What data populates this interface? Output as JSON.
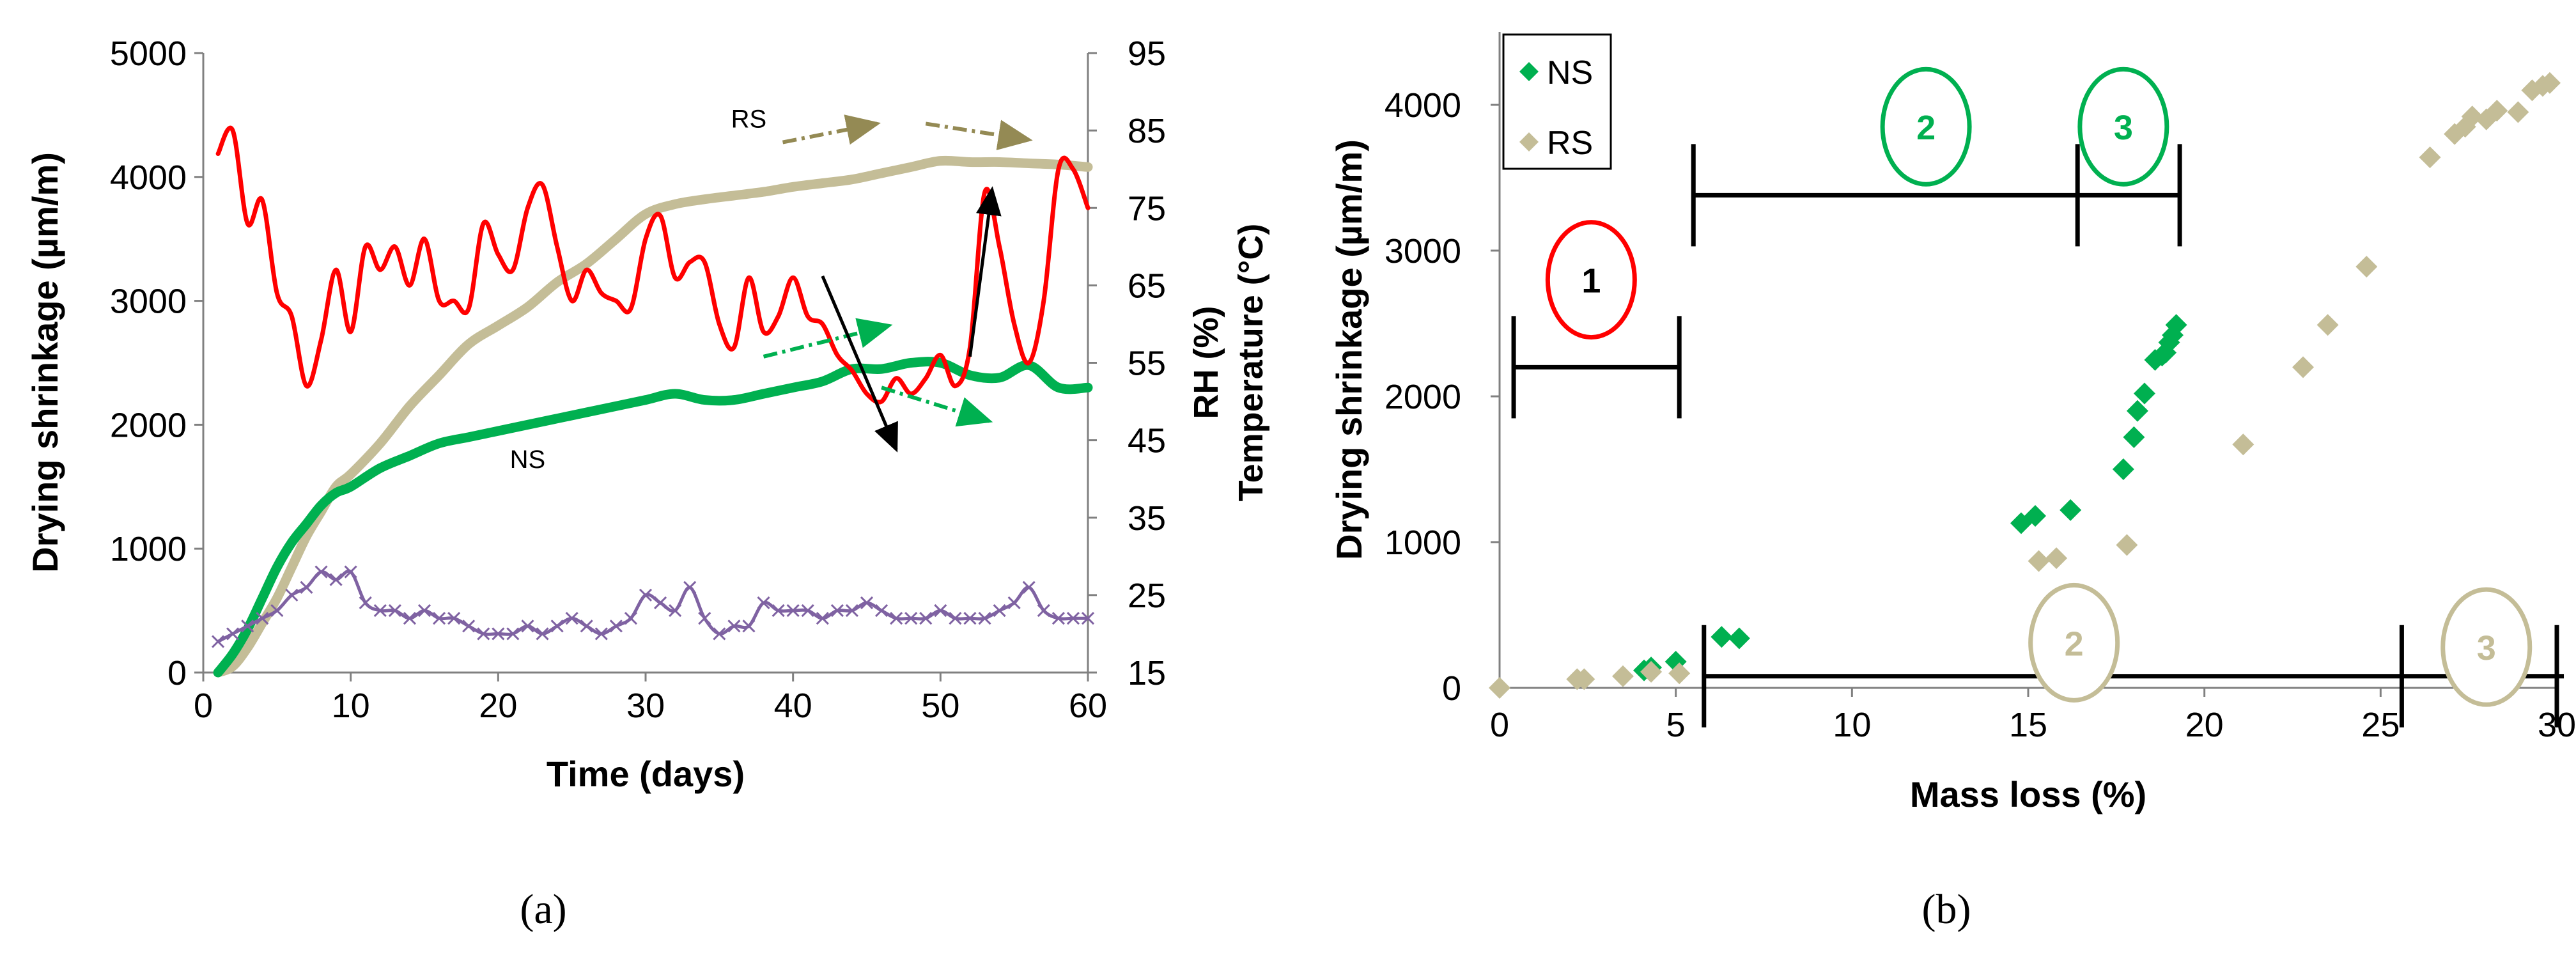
{
  "colors": {
    "ns": "#00B050",
    "rs": "#C4BD97",
    "rs_arrow": "#948A54",
    "red": "#FF0000",
    "purple": "#7F62A2",
    "black": "#000000"
  },
  "captions": {
    "a": "(a)",
    "b": "(b)"
  },
  "chart_data": [
    {
      "type": "line",
      "panel": "a",
      "xlabel": "Time (days)",
      "ylabel": "Drying shrinkage (µm/m)",
      "y2label_rh": "RH (%)",
      "y2label_temp": "Temperature (°C)",
      "xlim": [
        0,
        60
      ],
      "ylim": [
        0,
        5000
      ],
      "y2lim": [
        15,
        95
      ],
      "xticks": [
        0,
        10,
        20,
        30,
        40,
        50,
        60
      ],
      "yticks": [
        0,
        1000,
        2000,
        3000,
        4000,
        5000
      ],
      "y2ticks": [
        15,
        25,
        35,
        45,
        55,
        65,
        75,
        85,
        95
      ],
      "annotations": [
        {
          "text": "RS",
          "x": 37,
          "y": 4400
        },
        {
          "text": "NS",
          "x": 22,
          "y": 1650
        }
      ],
      "series": [
        {
          "name": "RS",
          "axis": "left",
          "color": "#C4BD97",
          "x": [
            1,
            2,
            3,
            4,
            5,
            6,
            7,
            8,
            9,
            10,
            12,
            14,
            16,
            18,
            20,
            22,
            24,
            26,
            28,
            30,
            32,
            34,
            36,
            38,
            40,
            42,
            44,
            46,
            48,
            50,
            52,
            54,
            56,
            58,
            60
          ],
          "y": [
            0,
            50,
            200,
            400,
            600,
            850,
            1100,
            1300,
            1500,
            1600,
            1850,
            2150,
            2400,
            2650,
            2800,
            2950,
            3150,
            3300,
            3500,
            3700,
            3780,
            3820,
            3850,
            3880,
            3920,
            3950,
            3980,
            4030,
            4080,
            4130,
            4120,
            4120,
            4110,
            4100,
            4080
          ]
        },
        {
          "name": "NS",
          "axis": "left",
          "color": "#00B050",
          "x": [
            1,
            2,
            3,
            4,
            5,
            6,
            7,
            8,
            9,
            10,
            12,
            14,
            16,
            18,
            20,
            22,
            24,
            26,
            28,
            30,
            32,
            34,
            36,
            38,
            40,
            42,
            44,
            46,
            48,
            50,
            52,
            54,
            56,
            58,
            60
          ],
          "y": [
            0,
            150,
            350,
            600,
            850,
            1050,
            1200,
            1350,
            1450,
            1500,
            1650,
            1750,
            1850,
            1900,
            1950,
            2000,
            2050,
            2100,
            2150,
            2200,
            2250,
            2200,
            2200,
            2250,
            2300,
            2350,
            2450,
            2450,
            2500,
            2500,
            2400,
            2380,
            2480,
            2300,
            2300
          ]
        },
        {
          "name": "RH (%)",
          "axis": "right",
          "color": "#FF0000",
          "x": [
            1,
            2,
            3,
            4,
            5,
            6,
            7,
            8,
            9,
            10,
            11,
            12,
            13,
            14,
            15,
            16,
            17,
            18,
            19,
            20,
            21,
            22,
            23,
            24,
            25,
            26,
            27,
            28,
            29,
            30,
            31,
            32,
            33,
            34,
            35,
            36,
            37,
            38,
            39,
            40,
            41,
            42,
            43,
            44,
            45,
            46,
            47,
            48,
            49,
            50,
            51,
            52,
            53,
            54,
            55,
            56,
            57,
            58,
            59,
            60
          ],
          "y": [
            82,
            85,
            73,
            76,
            64,
            61,
            52,
            58,
            67,
            59,
            70,
            67,
            70,
            65,
            71,
            63,
            63,
            62,
            73,
            69,
            67,
            75,
            78,
            70,
            63,
            67,
            64,
            63,
            62,
            71,
            74,
            66,
            68,
            68,
            60,
            57,
            66,
            59,
            61,
            66,
            61,
            60,
            56,
            54,
            51,
            50,
            53,
            51,
            53,
            56,
            52,
            57,
            77,
            70,
            60,
            55,
            63,
            80,
            80,
            75
          ]
        },
        {
          "name": "Temperature (°C)",
          "axis": "right",
          "color": "#7F62A2",
          "x": [
            1,
            2,
            3,
            4,
            5,
            6,
            7,
            8,
            9,
            10,
            11,
            12,
            13,
            14,
            15,
            16,
            17,
            18,
            19,
            20,
            21,
            22,
            23,
            24,
            25,
            26,
            27,
            28,
            29,
            30,
            31,
            32,
            33,
            34,
            35,
            36,
            37,
            38,
            39,
            40,
            41,
            42,
            43,
            44,
            45,
            46,
            47,
            48,
            49,
            50,
            51,
            52,
            53,
            54,
            55,
            56,
            57,
            58,
            59,
            60
          ],
          "y": [
            19,
            20,
            21,
            22,
            23,
            25,
            26,
            28,
            27,
            28,
            24,
            23,
            23,
            22,
            23,
            22,
            22,
            21,
            20,
            20,
            20,
            21,
            20,
            21,
            22,
            21,
            20,
            21,
            22,
            25,
            24,
            23,
            26,
            22,
            20,
            21,
            21,
            24,
            23,
            23,
            23,
            22,
            23,
            23,
            24,
            23,
            22,
            22,
            22,
            23,
            22,
            22,
            22,
            23,
            24,
            26,
            23,
            22,
            22,
            22
          ]
        }
      ]
    },
    {
      "type": "scatter",
      "panel": "b",
      "xlabel": "Mass loss (%)",
      "ylabel": "Drying shrinkage (µm/m)",
      "xlim": [
        0,
        30
      ],
      "ylim": [
        0,
        4500
      ],
      "xticks": [
        0,
        5,
        10,
        15,
        20,
        25,
        30
      ],
      "yticks": [
        0,
        1000,
        2000,
        3000,
        4000
      ],
      "legend": {
        "position": "top-left",
        "entries": [
          "NS",
          "RS"
        ]
      },
      "phase_labels": [
        {
          "text": "1",
          "x": 2.6,
          "y": 2800,
          "series": "NS"
        },
        {
          "text": "2",
          "x": 12.1,
          "y": 3850,
          "series": "NS"
        },
        {
          "text": "3",
          "x": 17.7,
          "y": 3850,
          "series": "NS"
        },
        {
          "text": "2",
          "x": 16.3,
          "y": 310,
          "series": "RS"
        },
        {
          "text": "3",
          "x": 28.0,
          "y": 280,
          "series": "RS"
        }
      ],
      "series": [
        {
          "name": "NS",
          "color": "#00B050",
          "x": [
            4.1,
            4.3,
            5.0,
            6.3,
            6.8,
            14.8,
            15.2,
            16.2,
            17.7,
            18.0,
            18.1,
            18.3,
            18.6,
            18.8,
            18.9,
            19.0,
            19.1,
            19.2
          ],
          "y": [
            120,
            140,
            180,
            350,
            340,
            1130,
            1180,
            1220,
            1500,
            1720,
            1900,
            2020,
            2250,
            2280,
            2300,
            2370,
            2420,
            2490
          ]
        },
        {
          "name": "RS",
          "color": "#C4BD97",
          "x": [
            0.0,
            2.2,
            2.4,
            3.5,
            4.3,
            5.1,
            15.3,
            15.8,
            17.8,
            21.1,
            22.8,
            23.5,
            24.6,
            26.4,
            27.1,
            27.4,
            27.6,
            28.0,
            28.3,
            28.9,
            29.3,
            29.6,
            29.8
          ],
          "y": [
            0,
            60,
            60,
            80,
            110,
            100,
            870,
            890,
            980,
            1670,
            2200,
            2490,
            2890,
            3640,
            3800,
            3850,
            3920,
            3900,
            3960,
            3950,
            4100,
            4130,
            4150
          ]
        }
      ]
    }
  ]
}
